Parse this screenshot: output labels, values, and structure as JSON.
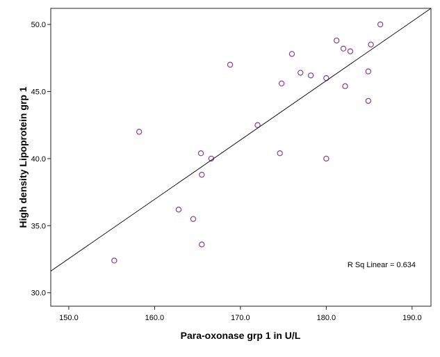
{
  "chart_data": {
    "type": "scatter",
    "title": "",
    "xlabel": "Para-oxonase grp 1 in U/L",
    "ylabel": "High density Lipoprotein grp 1",
    "xlim": [
      147.9,
      192.2
    ],
    "ylim": [
      29.0,
      51.2
    ],
    "xticks": [
      150,
      160,
      170,
      180,
      190
    ],
    "xtick_labels": [
      "150.0",
      "160.0",
      "170.0",
      "180.0",
      "190.0"
    ],
    "yticks": [
      30,
      35,
      40,
      45,
      50
    ],
    "ytick_labels": [
      "30.0",
      "35.0",
      "40.0",
      "45.0",
      "50.0"
    ],
    "grid": false,
    "marker_color": "#8e3a96",
    "points": [
      [
        155.3,
        32.4
      ],
      [
        158.2,
        42.0
      ],
      [
        162.8,
        36.2
      ],
      [
        164.5,
        35.5
      ],
      [
        165.5,
        33.6
      ],
      [
        165.4,
        40.4
      ],
      [
        165.5,
        38.8
      ],
      [
        166.6,
        40.0
      ],
      [
        168.8,
        47.0
      ],
      [
        172.0,
        42.5
      ],
      [
        174.6,
        40.4
      ],
      [
        174.8,
        45.6
      ],
      [
        176.0,
        47.8
      ],
      [
        177.0,
        46.4
      ],
      [
        178.2,
        46.2
      ],
      [
        180.0,
        46.0
      ],
      [
        180.0,
        40.0
      ],
      [
        181.2,
        48.8
      ],
      [
        182.0,
        48.2
      ],
      [
        182.2,
        45.4
      ],
      [
        182.8,
        48.0
      ],
      [
        184.9,
        46.5
      ],
      [
        184.9,
        44.3
      ],
      [
        185.2,
        48.5
      ],
      [
        186.3,
        50.0
      ]
    ],
    "fit_line": {
      "slope": 0.445,
      "intercept": -34.2
    },
    "annotation": "R Sq Linear = 0.634"
  }
}
